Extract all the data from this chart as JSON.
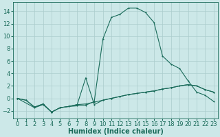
{
  "xlabel": "Humidex (Indice chaleur)",
  "background_color": "#cce8e8",
  "grid_color": "#aacccc",
  "line_color": "#1a6b5a",
  "xlim": [
    -0.5,
    23.5
  ],
  "ylim": [
    -3.2,
    15.5
  ],
  "xticks": [
    0,
    1,
    2,
    3,
    4,
    5,
    6,
    7,
    8,
    9,
    10,
    11,
    12,
    13,
    14,
    15,
    16,
    17,
    18,
    19,
    20,
    21,
    22,
    23
  ],
  "yticks": [
    -2,
    0,
    2,
    4,
    6,
    8,
    10,
    12,
    14
  ],
  "main_curve_x": [
    0,
    2,
    3,
    4,
    5,
    6,
    7,
    8,
    9,
    10,
    11,
    12,
    13,
    14,
    15,
    16,
    17,
    18,
    19,
    20,
    21,
    22,
    23
  ],
  "main_curve_y": [
    0,
    -1.5,
    -1.0,
    -2.2,
    -1.5,
    -1.3,
    -1.2,
    -1.1,
    -0.5,
    9.5,
    13.0,
    13.5,
    14.5,
    14.5,
    13.8,
    12.2,
    6.8,
    5.5,
    4.8,
    2.8,
    1.0,
    0.5,
    -0.5
  ],
  "flat1_x": [
    0,
    1,
    2,
    3,
    4,
    5,
    6,
    7,
    8,
    9,
    10,
    11,
    12,
    13,
    14,
    15,
    16,
    17,
    18,
    19,
    20,
    21,
    22,
    23
  ],
  "flat1_y": [
    0,
    -0.3,
    -1.4,
    -0.9,
    -2.2,
    -1.5,
    -1.3,
    -1.0,
    -0.9,
    -0.6,
    -0.3,
    0.0,
    0.3,
    0.6,
    0.8,
    1.0,
    1.2,
    1.5,
    1.7,
    2.0,
    2.2,
    2.0,
    1.4,
    1.0
  ],
  "flat2_x": [
    0,
    1,
    2,
    3,
    4,
    5,
    6,
    7,
    8,
    9,
    10,
    11,
    12,
    13,
    14,
    15,
    16,
    17,
    18,
    19,
    20,
    21,
    22,
    23
  ],
  "flat2_y": [
    0,
    -0.3,
    -1.4,
    -0.9,
    -2.2,
    -1.5,
    -1.3,
    -1.0,
    3.3,
    -1.0,
    -0.3,
    0.0,
    0.3,
    0.6,
    0.8,
    1.0,
    1.2,
    1.5,
    1.7,
    2.0,
    2.2,
    2.0,
    1.4,
    1.0
  ],
  "fontsize_xlabel": 7,
  "fontsize_ticks": 6
}
